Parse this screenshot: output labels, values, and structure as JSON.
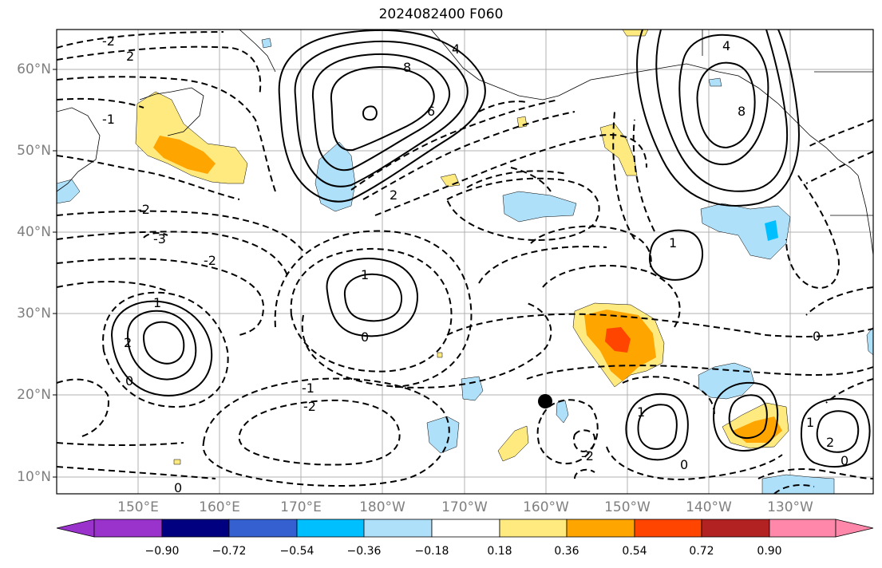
{
  "title": "2024082400 F060",
  "lat_labels": [
    "60°N",
    "50°N",
    "40°N",
    "30°N",
    "20°N",
    "10°N"
  ],
  "lon_labels": [
    "150°E",
    "160°E",
    "170°E",
    "180°W",
    "170°W",
    "160°W",
    "150°W",
    "140°W",
    "130°W"
  ],
  "colorbar": {
    "colors": [
      "#9933cc",
      "#000080",
      "#3560d0",
      "#00bfff",
      "#afe0fa",
      "#ffffff",
      "#ffea80",
      "#ffa500",
      "#ff4500",
      "#b22222",
      "#ff88aa"
    ],
    "labels": [
      "−0.90",
      "−0.72",
      "−0.54",
      "−0.36",
      "−0.18",
      "0.18",
      "0.36",
      "0.54",
      "0.72",
      "0.90"
    ]
  },
  "contour_labels": {
    "kamchatka_neg2": "-2",
    "kamchatka_neg2b": "2",
    "okhotsk_neg1": "-1",
    "aleut_high8": "8",
    "aleut_high6": "6",
    "aleut_4": "4",
    "aleut_2": "2",
    "alaska_8": "8",
    "alaska_4": "4",
    "mid_1": "1",
    "mid_0": "0",
    "west_1": "1",
    "west_2": "2",
    "west_0": "0",
    "south_neg1": "-1",
    "south_neg2": "-2",
    "hawaii_neg2": "-2",
    "east_1": "1",
    "east_0": "0",
    "far_east_2": "2",
    "far_east_1": "1",
    "far_east_0": "0",
    "ne_0": "0",
    "nw_0": "0",
    "neg3": "-3",
    "neg2_left": "-2",
    "neg2_mid": "-2",
    "east_high_1": "1"
  }
}
